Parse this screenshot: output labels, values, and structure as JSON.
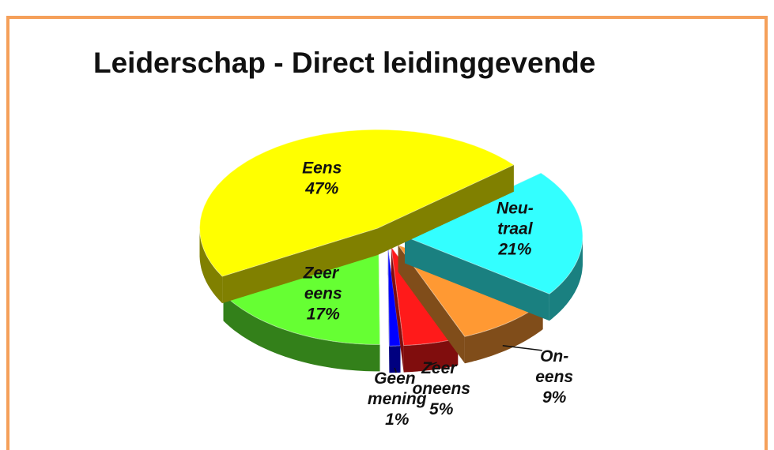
{
  "chart_data": {
    "type": "pie3d",
    "title": "Leiderschap - Direct leidinggevende",
    "categories": [
      "Neu-traal",
      "On-eens",
      "Zeer oneens",
      "Geen mening",
      "Zeer eens",
      "Eens"
    ],
    "values": [
      21,
      9,
      5,
      1,
      17,
      47
    ],
    "value_labels": [
      "21%",
      "9%",
      "5%",
      "1%",
      "17%",
      "47%"
    ],
    "colors": [
      "#33ffff",
      "#ff9933",
      "#ff1a1a",
      "#0000ff",
      "#66ff33",
      "#ffff00"
    ]
  }
}
